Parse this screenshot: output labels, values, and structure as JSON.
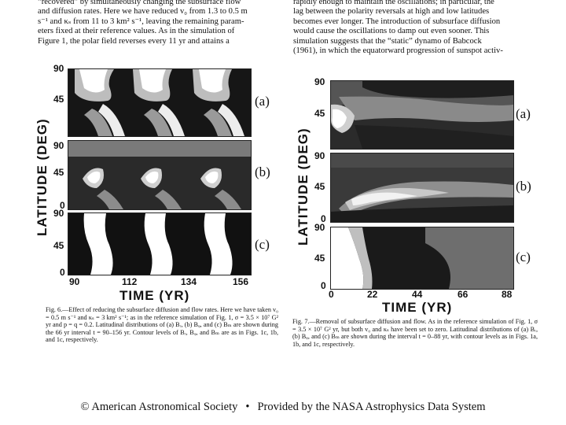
{
  "left_text": {
    "lines": [
      "“recovered” by simultaneously changing the subsurface flow",
      "and diffusion rates. Here we have reduced v₀ from 1.3 to 0.5 m",
      "s⁻¹ and κₛ from 11 to 3 km² s⁻¹, leaving the remaining param-",
      "eters fixed at their reference values. As in the simulation of",
      "Figure 1, the polar field reverses every 11 yr and attains a"
    ]
  },
  "right_text": {
    "lines": [
      "rapidly enough to maintain the oscillations; in particular, the",
      "lag between the polarity reversals at high and low latitudes",
      "becomes ever longer. The introduction of subsurface diffusion",
      "would cause the oscillations to damp out even sooner. This",
      "simulation suggests that the “static” dynamo of Babcock",
      "(1961), in which the equatorward progression of sunspot activ-"
    ]
  },
  "fig6": {
    "ylabel": "LATITUDE (DEG)",
    "xlabel": "TIME (YR)",
    "xticks": [
      "90",
      "112",
      "134",
      "156"
    ],
    "yticks": [
      "90",
      "45",
      "0"
    ],
    "panels": [
      "(a)",
      "(b)",
      "(c)"
    ],
    "caption": "Fig. 6.—Effect of reducing the subsurface diffusion and flow rates. Here we have taken v₀ = 0.5 m s⁻¹ and κₛ = 3 km² s⁻¹; as in the reference simulation of Fig. 1, σ = 3.5 × 10⁷ G² yr and p = q = 0.2. Latitudinal distributions of (a) Bᵣ, (b) Bᵩ, and (c) Bₘ are shown during the 66 yr interval t = 90–156 yr. Contour levels of Bᵣ, Bᵩ, and Bₘ are as in Figs. 1c, 1b, and 1c, respectively."
  },
  "fig7": {
    "ylabel": "LATITUDE (DEG)",
    "xlabel": "TIME (YR)",
    "xticks": [
      "0",
      "22",
      "44",
      "66",
      "88"
    ],
    "yticks": [
      "90",
      "45",
      "0"
    ],
    "panels": [
      "(a)",
      "(b)",
      "(c)"
    ],
    "caption": "Fig. 7.—Removal of subsurface diffusion and flow. As in the reference simulation of Fig. 1, σ = 3.5 × 10⁷ G² yr, but both v₀ and κₛ have been set to zero. Latitudinal distributions of (a) Bᵣ, (b) Bᵩ, and (c) Bₘ are shown during the interval t = 0–88 yr, with contour levels as in Figs. 1a, 1b, and 1c, respectively."
  },
  "footer": {
    "left": "© American Astronomical Society",
    "separator": "•",
    "right": "Provided by the NASA Astrophysics Data System"
  }
}
